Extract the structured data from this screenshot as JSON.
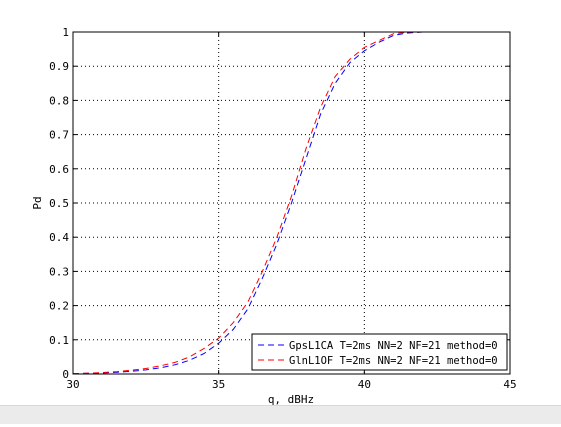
{
  "chart_data": {
    "type": "line",
    "title": "",
    "xlabel": "q, dBHz",
    "ylabel": "Pd",
    "xlim": [
      30,
      45
    ],
    "ylim": [
      0,
      1
    ],
    "xticks": [
      30,
      35,
      40,
      45
    ],
    "yticks": [
      0,
      0.1,
      0.2,
      0.3,
      0.4,
      0.5,
      0.6,
      0.7,
      0.8,
      0.9,
      1
    ],
    "grid": "dotted",
    "legend_position": "bottom-right",
    "series": [
      {
        "name": "GpsL1CA T=2ms NN=2 NF=21 method=0",
        "color": "#0000ff",
        "style": "dashed",
        "x": [
          30,
          30.5,
          31,
          31.5,
          32,
          32.5,
          33,
          33.5,
          34,
          34.5,
          35,
          35.5,
          36,
          36.5,
          37,
          37.5,
          38,
          38.5,
          39,
          39.5,
          40,
          40.5,
          41,
          41.5,
          42,
          43,
          44,
          45
        ],
        "y": [
          0.001,
          0.002,
          0.003,
          0.005,
          0.008,
          0.012,
          0.018,
          0.027,
          0.04,
          0.06,
          0.09,
          0.13,
          0.19,
          0.28,
          0.38,
          0.5,
          0.63,
          0.76,
          0.85,
          0.91,
          0.945,
          0.97,
          0.99,
          0.997,
          1,
          1,
          1,
          1
        ]
      },
      {
        "name": "GlnL1OF T=2ms NN=2 NF=21 method=0",
        "color": "#ff0000",
        "style": "dashed",
        "x": [
          30,
          30.5,
          31,
          31.5,
          32,
          32.5,
          33,
          33.5,
          34,
          34.5,
          35,
          35.5,
          36,
          36.5,
          37,
          37.5,
          38,
          38.5,
          39,
          39.5,
          40,
          40.5,
          41,
          41.5,
          42,
          43,
          44,
          45
        ],
        "y": [
          0.001,
          0.002,
          0.004,
          0.007,
          0.011,
          0.016,
          0.024,
          0.034,
          0.05,
          0.075,
          0.105,
          0.15,
          0.21,
          0.3,
          0.4,
          0.52,
          0.66,
          0.78,
          0.87,
          0.92,
          0.955,
          0.975,
          0.995,
          0.999,
          1,
          1,
          1,
          1
        ]
      }
    ]
  }
}
